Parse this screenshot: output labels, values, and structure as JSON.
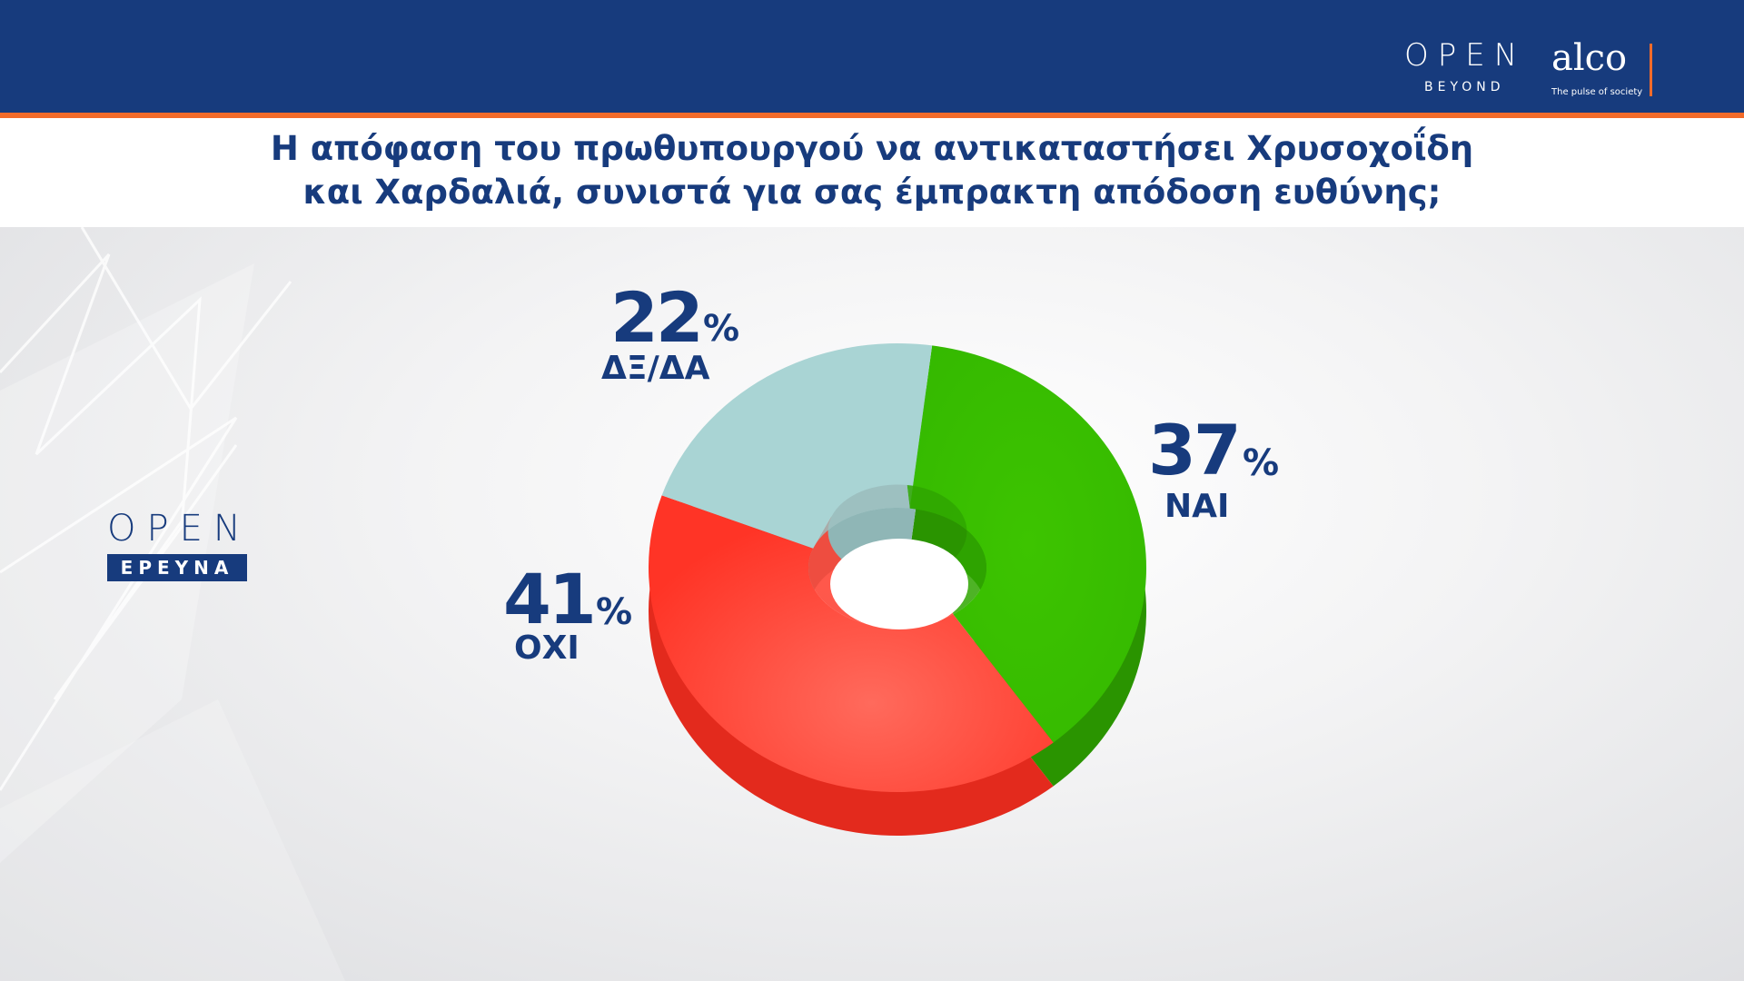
{
  "header": {
    "brand_open": "OPEN",
    "brand_beyond": "BEYOND",
    "brand_alco": "alco",
    "brand_tagline": "The pulse of society"
  },
  "title_lines": [
    "Η απόφαση του πρωθυπουργού να αντικαταστήσει Χρυσοχοΐδη",
    "και Χαρδαλιά, συνιστά για σας έμπρακτη απόδοση ευθύνης;"
  ],
  "side_logo": {
    "open": "OPEN",
    "ereuna": "ΕΡΕΥΝΑ"
  },
  "chart_data": {
    "type": "pie",
    "title": "Η απόφαση του πρωθυπουργού να αντικαταστήσει Χρυσοχοΐδη και Χαρδαλιά, συνιστά για σας έμπρακτη απόδοση ευθύνης;",
    "categories": [
      "ΝΑΙ",
      "ΟΧΙ",
      "ΔΞ/ΔΑ"
    ],
    "values": [
      37,
      41,
      22
    ],
    "unit": "%",
    "colors": [
      "#3ac000",
      "#ff3b2c",
      "#a9d4d4"
    ],
    "labels": {
      "yes": {
        "value": "37",
        "unit": "%",
        "category": "ΝΑΙ"
      },
      "no": {
        "value": "41",
        "unit": "%",
        "category": "ΟΧΙ"
      },
      "dk": {
        "value": "22",
        "unit": "%",
        "category": "ΔΞ/ΔΑ"
      }
    }
  },
  "colors": {
    "navy": "#173b7d",
    "orange": "#f26b2a"
  }
}
